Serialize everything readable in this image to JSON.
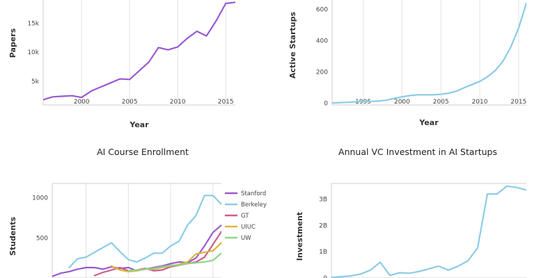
{
  "chart_data": [
    {
      "type": "line",
      "title": "",
      "xlabel": "Year",
      "ylabel": "Papers",
      "xlim": [
        1996,
        2016
      ],
      "ylim": [
        900,
        19000
      ],
      "xticks": [
        2000,
        2005,
        2010,
        2015
      ],
      "xtick_labels": [
        "2000",
        "2005",
        "2010",
        "2015"
      ],
      "yticks": [
        5000,
        10000,
        15000
      ],
      "ytick_labels": [
        "5k",
        "10k",
        "15k"
      ],
      "grid": "vertical",
      "series": [
        {
          "name": "",
          "color": "#9b59d0",
          "x": [
            1996,
            1997,
            1998,
            1999,
            2000,
            2001,
            2002,
            2003,
            2004,
            2005,
            2006,
            2007,
            2008,
            2009,
            2010,
            2011,
            2012,
            2013,
            2014,
            2015,
            2016
          ],
          "y": [
            1800,
            2300,
            2400,
            2500,
            2200,
            3300,
            4000,
            4700,
            5400,
            5300,
            6800,
            8300,
            10800,
            10400,
            10900,
            12400,
            13600,
            12800,
            15400,
            18400,
            18600
          ]
        }
      ]
    },
    {
      "type": "line",
      "title": "",
      "xlabel": "Year",
      "ylabel": "Active Startups",
      "xlim": [
        1991,
        2016
      ],
      "ylim": [
        -10,
        660
      ],
      "xticks": [
        1995,
        2000,
        2005,
        2010,
        2015
      ],
      "xtick_labels": [
        "1995",
        "2000",
        "2005",
        "2010",
        "2015"
      ],
      "yticks": [
        0,
        200,
        400,
        600
      ],
      "ytick_labels": [
        "0",
        "200",
        "400",
        "600"
      ],
      "grid": "vertical",
      "series": [
        {
          "name": "",
          "color": "#8ccbe6",
          "x": [
            1991,
            1992,
            1993,
            1994,
            1995,
            1996,
            1997,
            1998,
            1999,
            2000,
            2001,
            2002,
            2003,
            2004,
            2005,
            2006,
            2007,
            2008,
            2009,
            2010,
            2011,
            2012,
            2013,
            2014,
            2015,
            2016
          ],
          "y": [
            3,
            5,
            7,
            10,
            12,
            13,
            15,
            20,
            32,
            42,
            50,
            55,
            55,
            55,
            58,
            65,
            78,
            100,
            120,
            140,
            170,
            210,
            270,
            360,
            480,
            640
          ]
        }
      ]
    },
    {
      "type": "line",
      "title": "AI Course Enrollment",
      "xlabel": "",
      "ylabel": "Students",
      "xlim": [
        1996,
        2016
      ],
      "ylim": [
        0,
        1180
      ],
      "xticks": [
        2000,
        2005,
        2010,
        2015
      ],
      "yticks": [
        500,
        1000
      ],
      "ytick_labels": [
        "500",
        "1000"
      ],
      "grid": "vertical",
      "legend": "right",
      "series": [
        {
          "name": "Stanford",
          "color": "#9b59d0",
          "x": [
            1996,
            1997,
            1998,
            1999,
            2000,
            2001,
            2002,
            2003,
            2004,
            2005,
            2006,
            2007,
            2008,
            2009,
            2010,
            2011,
            2012,
            2013,
            2014,
            2015,
            2016
          ],
          "y": [
            20,
            60,
            80,
            110,
            130,
            130,
            110,
            140,
            120,
            130,
            90,
            110,
            130,
            150,
            180,
            200,
            190,
            250,
            400,
            570,
            660
          ]
        },
        {
          "name": "Berkeley",
          "color": "#8ccbe6",
          "x": [
            1998,
            1999,
            2000,
            2001,
            2002,
            2003,
            2004,
            2005,
            2006,
            2007,
            2008,
            2009,
            2010,
            2011,
            2012,
            2013,
            2014,
            2015,
            2016
          ],
          "y": [
            130,
            240,
            260,
            320,
            380,
            440,
            330,
            230,
            200,
            250,
            310,
            310,
            400,
            460,
            660,
            780,
            1030,
            1030,
            920
          ]
        },
        {
          "name": "GT",
          "color": "#cc5c8d",
          "x": [
            2001,
            2002,
            2003,
            2004,
            2005,
            2006,
            2007,
            2008,
            2009,
            2010,
            2011,
            2012,
            2013,
            2014,
            2015,
            2016
          ],
          "y": [
            30,
            70,
            100,
            130,
            90,
            100,
            120,
            90,
            100,
            140,
            160,
            180,
            200,
            260,
            420,
            580
          ]
        },
        {
          "name": "UIUC",
          "color": "#d9b73a",
          "x": [
            2003,
            2004,
            2005,
            2006,
            2007,
            2008,
            2009,
            2010,
            2011,
            2012,
            2013,
            2014,
            2015,
            2016
          ],
          "y": [
            150,
            100,
            80,
            90,
            110,
            110,
            130,
            150,
            170,
            200,
            300,
            320,
            340,
            440
          ]
        },
        {
          "name": "UW",
          "color": "#8fd48a",
          "x": [
            2005,
            2006,
            2007,
            2008,
            2009,
            2010,
            2011,
            2012,
            2013,
            2014,
            2015,
            2016
          ],
          "y": [
            90,
            100,
            110,
            120,
            140,
            160,
            160,
            180,
            190,
            200,
            220,
            310
          ]
        }
      ]
    },
    {
      "type": "line",
      "title": "Annual VC Investment in AI Startups",
      "xlabel": "",
      "ylabel": "Investment",
      "xlim": [
        1996,
        2016
      ],
      "ylim": [
        0,
        3.6
      ],
      "yticks": [
        0,
        1,
        2,
        3
      ],
      "ytick_labels": [
        "0",
        "1B",
        "2B",
        "3B"
      ],
      "grid": "vertical",
      "series": [
        {
          "name": "",
          "color": "#8ccbe6",
          "x": [
            1996,
            1997,
            1998,
            1999,
            2000,
            2001,
            2002,
            2003,
            2004,
            2005,
            2006,
            2007,
            2008,
            2009,
            2010,
            2011,
            2012,
            2013,
            2014,
            2015,
            2016
          ],
          "y": [
            0.02,
            0.05,
            0.08,
            0.15,
            0.3,
            0.6,
            0.1,
            0.2,
            0.18,
            0.25,
            0.35,
            0.45,
            0.3,
            0.45,
            0.65,
            1.15,
            3.2,
            3.2,
            3.5,
            3.45,
            3.35
          ]
        }
      ]
    }
  ]
}
